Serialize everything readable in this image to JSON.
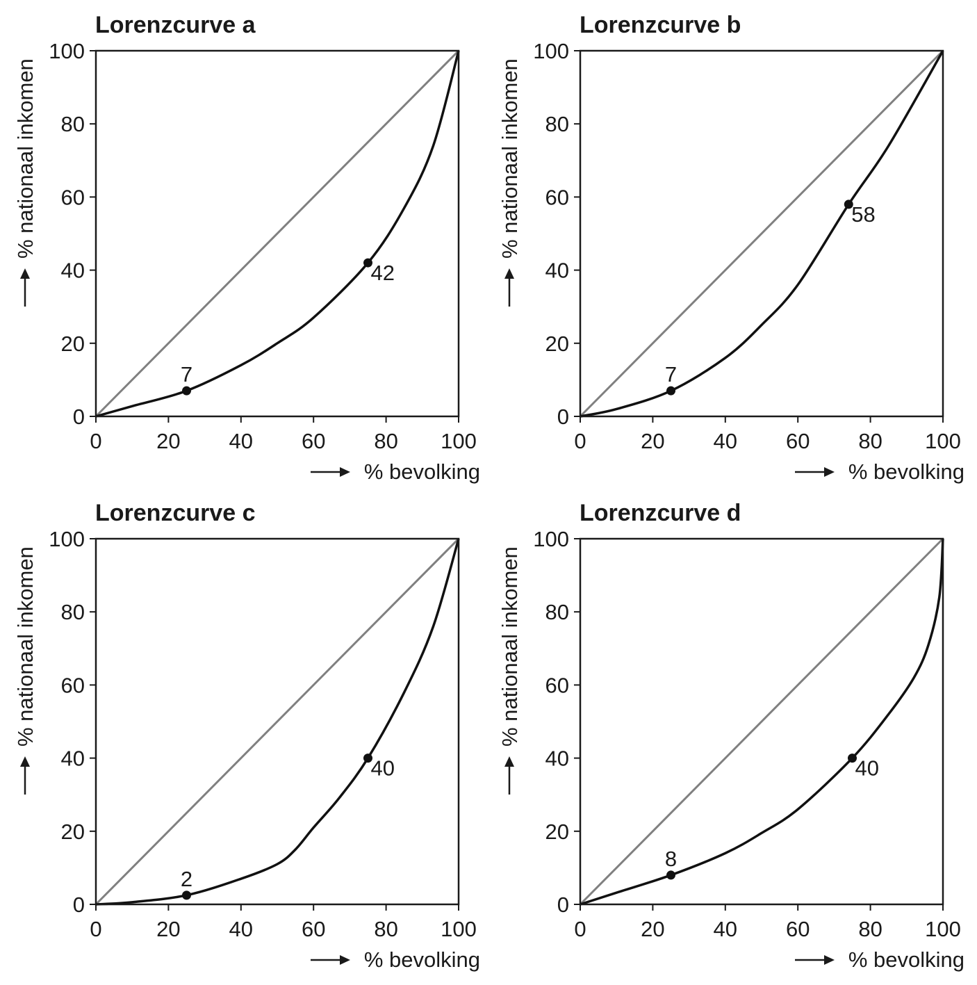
{
  "chart_data": [
    {
      "type": "line",
      "title": "Lorenzcurve a",
      "xlabel": "% bevolking",
      "ylabel": "% nationaal inkomen",
      "xlim": [
        0,
        100
      ],
      "ylim": [
        0,
        100
      ],
      "xticks": [
        "0",
        "20",
        "40",
        "60",
        "80",
        "100"
      ],
      "yticks": [
        "0",
        "20",
        "40",
        "60",
        "80",
        "100"
      ],
      "series": [
        {
          "name": "gelijkheidslijn",
          "x": [
            0,
            100
          ],
          "values": [
            0,
            100
          ]
        },
        {
          "name": "Lorenzcurve",
          "x": [
            0,
            10,
            25,
            40,
            50,
            60,
            75,
            85,
            93,
            100
          ],
          "values": [
            0,
            2.8,
            7,
            14,
            20,
            27,
            42,
            57,
            74,
            100
          ]
        }
      ],
      "points": [
        {
          "x": 25,
          "y": 7,
          "label": "7"
        },
        {
          "x": 75,
          "y": 42,
          "label": "42"
        }
      ]
    },
    {
      "type": "line",
      "title": "Lorenzcurve b",
      "xlabel": "% bevolking",
      "ylabel": "% nationaal inkomen",
      "xlim": [
        0,
        100
      ],
      "ylim": [
        0,
        100
      ],
      "xticks": [
        "0",
        "20",
        "40",
        "60",
        "80",
        "100"
      ],
      "yticks": [
        "0",
        "20",
        "40",
        "60",
        "80",
        "100"
      ],
      "series": [
        {
          "name": "gelijkheidslijn",
          "x": [
            0,
            100
          ],
          "values": [
            0,
            100
          ]
        },
        {
          "name": "Lorenzcurve",
          "x": [
            0,
            10,
            25,
            40,
            50,
            60,
            74,
            85,
            100
          ],
          "values": [
            0,
            2,
            7,
            16,
            25,
            36,
            58,
            74,
            100
          ]
        }
      ],
      "points": [
        {
          "x": 25,
          "y": 7,
          "label": "7"
        },
        {
          "x": 74,
          "y": 58,
          "label": "58"
        }
      ]
    },
    {
      "type": "line",
      "title": "Lorenzcurve c",
      "xlabel": "% bevolking",
      "ylabel": "% nationaal inkomen",
      "xlim": [
        0,
        100
      ],
      "ylim": [
        0,
        100
      ],
      "xticks": [
        "0",
        "20",
        "40",
        "60",
        "80",
        "100"
      ],
      "yticks": [
        "0",
        "20",
        "40",
        "60",
        "80",
        "100"
      ],
      "series": [
        {
          "name": "gelijkheidslijn",
          "x": [
            0,
            100
          ],
          "values": [
            0,
            100
          ]
        },
        {
          "name": "Lorenzcurve",
          "x": [
            0,
            10,
            25,
            40,
            50,
            55,
            60,
            67,
            75,
            85,
            93,
            100
          ],
          "values": [
            0,
            0.6,
            2.5,
            7,
            11,
            15,
            21,
            29,
            40,
            58,
            76,
            100
          ]
        }
      ],
      "points": [
        {
          "x": 25,
          "y": 2.5,
          "label": "2"
        },
        {
          "x": 75,
          "y": 40,
          "label": "40"
        }
      ]
    },
    {
      "type": "line",
      "title": "Lorenzcurve d",
      "xlabel": "% bevolking",
      "ylabel": "% nationaal inkomen",
      "xlim": [
        0,
        100
      ],
      "ylim": [
        0,
        100
      ],
      "xticks": [
        "0",
        "20",
        "40",
        "60",
        "80",
        "100"
      ],
      "yticks": [
        "0",
        "20",
        "40",
        "60",
        "80",
        "100"
      ],
      "series": [
        {
          "name": "gelijkheidslijn",
          "x": [
            0,
            100
          ],
          "values": [
            0,
            100
          ]
        },
        {
          "name": "Lorenzcurve",
          "x": [
            0,
            10,
            25,
            40,
            50,
            60,
            75,
            85,
            92,
            96,
            99,
            100
          ],
          "values": [
            0,
            3.2,
            8,
            14,
            19.5,
            26,
            40,
            52,
            62,
            71,
            84,
            100
          ]
        }
      ],
      "points": [
        {
          "x": 25,
          "y": 8,
          "label": "8"
        },
        {
          "x": 75,
          "y": 40,
          "label": "40"
        }
      ]
    }
  ]
}
